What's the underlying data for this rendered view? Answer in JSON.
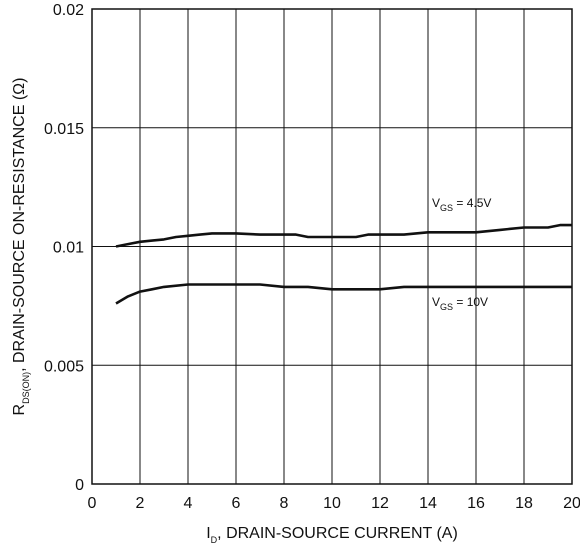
{
  "chart_data": {
    "type": "line",
    "xlabel": {
      "main": "I",
      "sub": "D",
      "rest": ", DRAIN-SOURCE CURRENT (A)"
    },
    "ylabel": {
      "main": "R",
      "sub": "DS(ON)",
      "rest": ", DRAIN-SOURCE ON-RESISTANCE (Ω)"
    },
    "xlim": [
      0,
      20
    ],
    "ylim": [
      0,
      0.02
    ],
    "xticks": [
      "0",
      "2",
      "4",
      "6",
      "8",
      "10",
      "12",
      "14",
      "16",
      "18",
      "20"
    ],
    "yticks": [
      "0",
      "0.005",
      "0.01",
      "0.015",
      "0.02"
    ],
    "grid": true,
    "series": [
      {
        "label": {
          "main": "V",
          "sub": "GS",
          "rest": " = 4.5V"
        },
        "x": [
          1,
          1.5,
          2,
          2.5,
          3,
          3.5,
          4,
          4.5,
          5,
          6,
          7,
          8,
          8.5,
          9,
          10,
          11,
          11.5,
          12,
          13,
          14,
          15,
          16,
          17,
          18,
          19,
          19.5,
          20
        ],
        "y": [
          0.01,
          0.0101,
          0.0102,
          0.01025,
          0.0103,
          0.0104,
          0.01045,
          0.0105,
          0.01055,
          0.01055,
          0.0105,
          0.0105,
          0.0105,
          0.0104,
          0.0104,
          0.0104,
          0.0105,
          0.0105,
          0.0105,
          0.0106,
          0.0106,
          0.0106,
          0.0107,
          0.0108,
          0.0108,
          0.0109,
          0.0109
        ]
      },
      {
        "label": {
          "main": "V",
          "sub": "GS",
          "rest": " = 10V"
        },
        "x": [
          1,
          1.5,
          2,
          2.5,
          3,
          4,
          5,
          6,
          7,
          8,
          9,
          10,
          11,
          12,
          13,
          14,
          15,
          16,
          17,
          18,
          19,
          20
        ],
        "y": [
          0.0076,
          0.0079,
          0.0081,
          0.0082,
          0.0083,
          0.0084,
          0.0084,
          0.0084,
          0.0084,
          0.0083,
          0.0083,
          0.0082,
          0.0082,
          0.0082,
          0.0083,
          0.0083,
          0.0083,
          0.0083,
          0.0083,
          0.0083,
          0.0083,
          0.0083
        ]
      }
    ]
  }
}
